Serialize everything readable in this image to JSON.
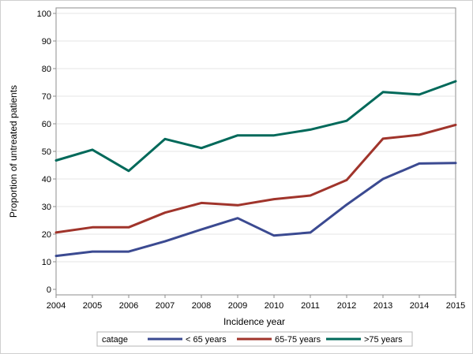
{
  "chart_data": {
    "type": "line",
    "xlabel": "Incidence year",
    "ylabel": "Proportion of untreated patients",
    "x": [
      2004,
      2005,
      2006,
      2007,
      2008,
      2009,
      2010,
      2011,
      2012,
      2013,
      2014,
      2015
    ],
    "xlim": [
      2004,
      2015
    ],
    "ylim": [
      0,
      100
    ],
    "yticks": [
      0,
      10,
      20,
      30,
      40,
      50,
      60,
      70,
      80,
      90,
      100
    ],
    "grid": true,
    "legend": {
      "title": "catage",
      "placement": "bottom"
    },
    "series": [
      {
        "name": "< 65 years",
        "color": "#3b4a91",
        "values": [
          12.1,
          13.7,
          13.7,
          17.4,
          21.7,
          25.8,
          19.5,
          20.6,
          30.7,
          40.0,
          45.6,
          45.8
        ]
      },
      {
        "name": "65-75 years",
        "color": "#a0342b",
        "values": [
          20.6,
          22.5,
          22.5,
          27.8,
          31.3,
          30.5,
          32.7,
          34.0,
          39.6,
          54.6,
          56.0,
          59.6
        ]
      },
      {
        "name": ">75 years",
        "color": "#00695a",
        "values": [
          46.7,
          50.6,
          42.9,
          54.5,
          51.2,
          55.8,
          55.8,
          57.9,
          61.1,
          71.5,
          70.6,
          75.4
        ]
      }
    ]
  }
}
